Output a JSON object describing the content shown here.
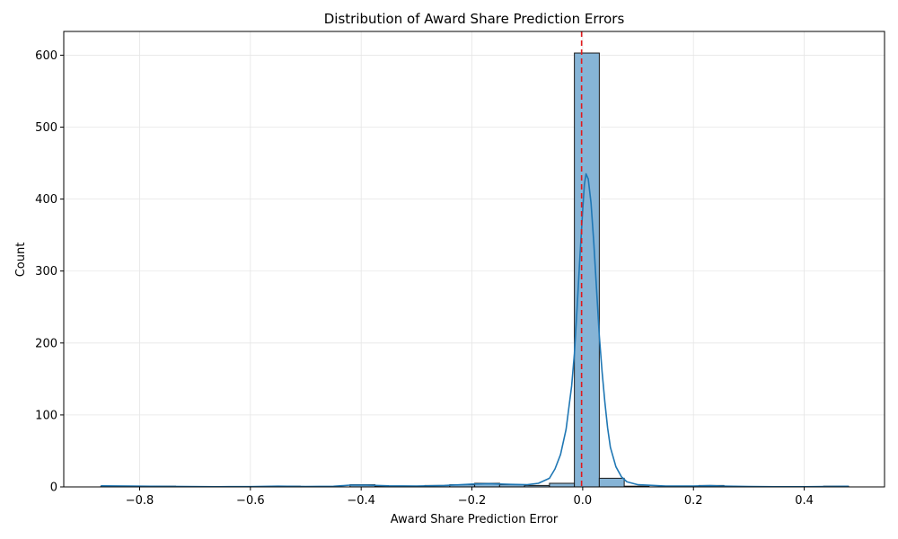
{
  "chart_data": {
    "type": "bar",
    "title": "Distribution of Award Share Prediction Errors",
    "xlabel": "Award Share Prediction Error",
    "ylabel": "Count",
    "xlim": [
      -0.937,
      0.545
    ],
    "ylim": [
      0,
      633
    ],
    "xticks": [
      -0.8,
      -0.6,
      -0.4,
      -0.2,
      0.0,
      0.2,
      0.4
    ],
    "xtick_labels": [
      "−0.8",
      "−0.6",
      "−0.4",
      "−0.2",
      "0.0",
      "0.2",
      "0.4"
    ],
    "yticks": [
      0,
      100,
      200,
      300,
      400,
      500,
      600
    ],
    "ytick_labels": [
      "0",
      "100",
      "200",
      "300",
      "400",
      "500",
      "600"
    ],
    "grid": true,
    "bin_width": 0.045,
    "bars": [
      {
        "x0": -0.87,
        "count": 1
      },
      {
        "x0": -0.825,
        "count": 0
      },
      {
        "x0": -0.78,
        "count": 1
      },
      {
        "x0": -0.735,
        "count": 0
      },
      {
        "x0": -0.69,
        "count": 0
      },
      {
        "x0": -0.645,
        "count": 0
      },
      {
        "x0": -0.6,
        "count": 0
      },
      {
        "x0": -0.555,
        "count": 1
      },
      {
        "x0": -0.51,
        "count": 0
      },
      {
        "x0": -0.465,
        "count": 0
      },
      {
        "x0": -0.42,
        "count": 3
      },
      {
        "x0": -0.375,
        "count": 1
      },
      {
        "x0": -0.33,
        "count": 1
      },
      {
        "x0": -0.285,
        "count": 2
      },
      {
        "x0": -0.24,
        "count": 3
      },
      {
        "x0": -0.195,
        "count": 5
      },
      {
        "x0": -0.15,
        "count": 3
      },
      {
        "x0": -0.105,
        "count": 2
      },
      {
        "x0": -0.06,
        "count": 5
      },
      {
        "x0": -0.015,
        "count": 603
      },
      {
        "x0": 0.03,
        "count": 12
      },
      {
        "x0": 0.075,
        "count": 1
      },
      {
        "x0": 0.12,
        "count": 0
      },
      {
        "x0": 0.165,
        "count": 0
      },
      {
        "x0": 0.21,
        "count": 2
      },
      {
        "x0": 0.255,
        "count": 0
      },
      {
        "x0": 0.3,
        "count": 0
      },
      {
        "x0": 0.345,
        "count": 0
      },
      {
        "x0": 0.39,
        "count": 0
      },
      {
        "x0": 0.435,
        "count": 1
      }
    ],
    "kde": [
      [
        -0.87,
        1.5
      ],
      [
        -0.82,
        1.2
      ],
      [
        -0.78,
        0.8
      ],
      [
        -0.72,
        0.5
      ],
      [
        -0.66,
        0.3
      ],
      [
        -0.6,
        0.4
      ],
      [
        -0.55,
        1.0
      ],
      [
        -0.5,
        0.5
      ],
      [
        -0.45,
        0.8
      ],
      [
        -0.42,
        2.5
      ],
      [
        -0.39,
        2.5
      ],
      [
        -0.35,
        1.5
      ],
      [
        -0.3,
        1.2
      ],
      [
        -0.25,
        2.0
      ],
      [
        -0.2,
        3.8
      ],
      [
        -0.17,
        4.5
      ],
      [
        -0.13,
        3.5
      ],
      [
        -0.1,
        3.0
      ],
      [
        -0.08,
        5
      ],
      [
        -0.06,
        12
      ],
      [
        -0.05,
        25
      ],
      [
        -0.04,
        45
      ],
      [
        -0.03,
        80
      ],
      [
        -0.02,
        140
      ],
      [
        -0.015,
        185
      ],
      [
        -0.01,
        250
      ],
      [
        -0.005,
        320
      ],
      [
        0.0,
        385
      ],
      [
        0.003,
        420
      ],
      [
        0.006,
        435
      ],
      [
        0.01,
        428
      ],
      [
        0.015,
        395
      ],
      [
        0.02,
        340
      ],
      [
        0.025,
        275
      ],
      [
        0.03,
        210
      ],
      [
        0.035,
        160
      ],
      [
        0.04,
        118
      ],
      [
        0.045,
        82
      ],
      [
        0.05,
        55
      ],
      [
        0.06,
        28
      ],
      [
        0.07,
        14
      ],
      [
        0.08,
        7
      ],
      [
        0.1,
        3
      ],
      [
        0.15,
        1.2
      ],
      [
        0.2,
        1.2
      ],
      [
        0.23,
        1.8
      ],
      [
        0.26,
        1.0
      ],
      [
        0.3,
        0.5
      ],
      [
        0.35,
        0.3
      ],
      [
        0.4,
        0.3
      ],
      [
        0.44,
        0.6
      ],
      [
        0.48,
        0.8
      ]
    ],
    "reference_line": {
      "x": -0.002,
      "color": "#e31a1c",
      "style": "dashed"
    },
    "colors": {
      "bar_fill": "#86b4d6",
      "bar_edge": "#1a1a1a",
      "kde_line": "#1f77b4",
      "grid": "#e6e6e6"
    }
  }
}
